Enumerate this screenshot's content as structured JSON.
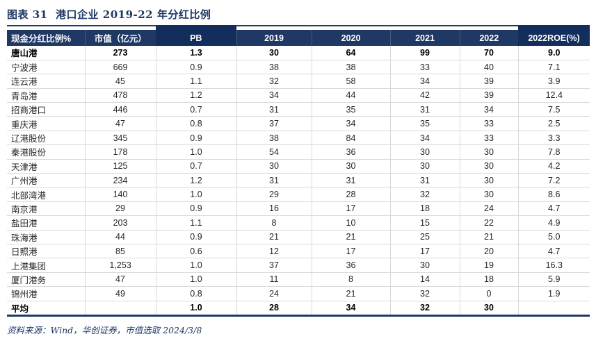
{
  "figure": {
    "title": "图表 31  港口企业 2019-22 年分红比例",
    "source_note": "资料来源：Wind，华创证券，市值选取 2024/3/8"
  },
  "colors": {
    "navy": "#1f3864",
    "navy_dark_highlight": "#132e5c",
    "grid_line": "#d9d9d9",
    "body_text": "#262626"
  },
  "chart_data": {
    "type": "table",
    "title": "图表 31 港口企业 2019-22 年分红比例",
    "headers": [
      "现金分红比例%",
      "市值（亿元）",
      "PB",
      "2019",
      "2020",
      "2021",
      "2022",
      "2022ROE(%)"
    ],
    "highlighted_columns": [
      2,
      7
    ],
    "rows": [
      {
        "cells": [
          "唐山港",
          "273",
          "1.3",
          "30",
          "64",
          "99",
          "70",
          "9.0"
        ],
        "bold": true
      },
      {
        "cells": [
          "宁波港",
          "669",
          "0.9",
          "38",
          "38",
          "33",
          "40",
          "7.1"
        ],
        "bold": false
      },
      {
        "cells": [
          "连云港",
          "45",
          "1.1",
          "32",
          "58",
          "34",
          "39",
          "3.9"
        ],
        "bold": false
      },
      {
        "cells": [
          "青岛港",
          "478",
          "1.2",
          "34",
          "44",
          "42",
          "39",
          "12.4"
        ],
        "bold": false
      },
      {
        "cells": [
          "招商港口",
          "446",
          "0.7",
          "31",
          "35",
          "31",
          "34",
          "7.5"
        ],
        "bold": false
      },
      {
        "cells": [
          "重庆港",
          "47",
          "0.8",
          "37",
          "34",
          "35",
          "33",
          "2.5"
        ],
        "bold": false
      },
      {
        "cells": [
          "辽港股份",
          "345",
          "0.9",
          "38",
          "84",
          "34",
          "33",
          "3.3"
        ],
        "bold": false
      },
      {
        "cells": [
          "秦港股份",
          "178",
          "1.0",
          "54",
          "36",
          "30",
          "30",
          "7.8"
        ],
        "bold": false
      },
      {
        "cells": [
          "天津港",
          "125",
          "0.7",
          "30",
          "30",
          "30",
          "30",
          "4.2"
        ],
        "bold": false
      },
      {
        "cells": [
          "广州港",
          "234",
          "1.2",
          "31",
          "31",
          "31",
          "30",
          "7.2"
        ],
        "bold": false
      },
      {
        "cells": [
          "北部湾港",
          "140",
          "1.0",
          "29",
          "28",
          "32",
          "30",
          "8.6"
        ],
        "bold": false
      },
      {
        "cells": [
          "南京港",
          "29",
          "0.9",
          "16",
          "17",
          "18",
          "24",
          "4.7"
        ],
        "bold": false
      },
      {
        "cells": [
          "盐田港",
          "203",
          "1.1",
          "8",
          "10",
          "15",
          "22",
          "4.9"
        ],
        "bold": false
      },
      {
        "cells": [
          "珠海港",
          "44",
          "0.9",
          "21",
          "21",
          "25",
          "21",
          "5.0"
        ],
        "bold": false
      },
      {
        "cells": [
          "日照港",
          "85",
          "0.6",
          "12",
          "17",
          "17",
          "20",
          "4.7"
        ],
        "bold": false
      },
      {
        "cells": [
          "上港集团",
          "1,253",
          "1.0",
          "37",
          "36",
          "30",
          "19",
          "16.3"
        ],
        "bold": false
      },
      {
        "cells": [
          "厦门港务",
          "47",
          "1.0",
          "11",
          "8",
          "14",
          "18",
          "5.9"
        ],
        "bold": false
      },
      {
        "cells": [
          "锦州港",
          "49",
          "0.8",
          "24",
          "21",
          "32",
          "0",
          "1.9"
        ],
        "bold": false
      },
      {
        "cells": [
          "平均",
          "",
          "1.0",
          "28",
          "34",
          "32",
          "30",
          ""
        ],
        "bold": true
      }
    ]
  }
}
